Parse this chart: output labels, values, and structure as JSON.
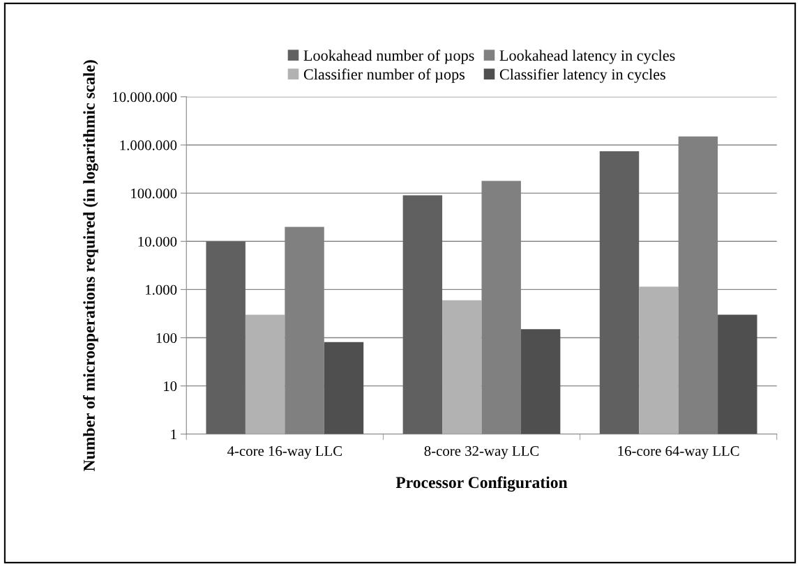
{
  "chart_data": {
    "type": "bar",
    "log": "y",
    "xlabel": "Processor Configuration",
    "ylabel": "Number of microoperations required (in logarithmic scale)",
    "categories": [
      "4-core 16-way LLC",
      "8-core 32-way LLC",
      "16-core 64-way LLC"
    ],
    "series": [
      {
        "name": "Lookahead number of µops",
        "color": "#606060",
        "values": [
          10000,
          90000,
          740000
        ]
      },
      {
        "name": "Classifier number of µops",
        "color": "#b2b2b2",
        "values": [
          300,
          600,
          1150
        ]
      },
      {
        "name": "Lookahead latency in cycles",
        "color": "#808080",
        "values": [
          20000,
          180000,
          1500000
        ]
      },
      {
        "name": "Classifier latency in cycles",
        "color": "#4f4f4f",
        "values": [
          80,
          150,
          300
        ]
      }
    ],
    "ylim": [
      1,
      10000000
    ],
    "yticks": [
      {
        "value": 1,
        "label": "1"
      },
      {
        "value": 10,
        "label": "10"
      },
      {
        "value": 100,
        "label": "100"
      },
      {
        "value": 1000,
        "label": "1.000"
      },
      {
        "value": 10000,
        "label": "10.000"
      },
      {
        "value": 100000,
        "label": "100.000"
      },
      {
        "value": 1000000,
        "label": "1.000.000"
      },
      {
        "value": 10000000,
        "label": "10.000.000"
      }
    ],
    "grid": "y",
    "legend": "top"
  }
}
